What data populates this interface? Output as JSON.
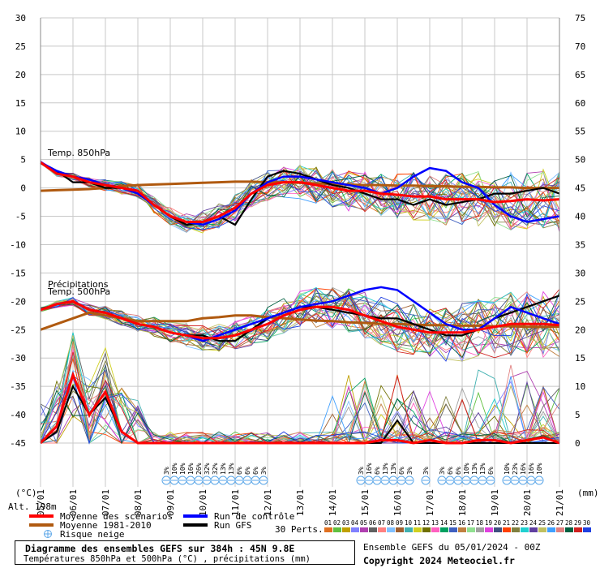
{
  "chart_data": {
    "type": "line",
    "left_axis": {
      "unit": "(°C)",
      "range": [
        -45,
        30
      ],
      "ticks": [
        "30",
        "25",
        "20",
        "15",
        "10",
        "5",
        "0",
        "-5",
        "-10",
        "-15",
        "-20",
        "-25",
        "-30",
        "-35",
        "-40",
        "-45"
      ]
    },
    "right_axis": {
      "unit": "(mm)",
      "range": [
        0,
        75
      ],
      "ticks": [
        "75",
        "70",
        "65",
        "60",
        "55",
        "50",
        "45",
        "40",
        "35",
        "30",
        "25",
        "20",
        "15",
        "10",
        "5",
        "0"
      ]
    },
    "x_ticks": [
      "05/01",
      "06/01",
      "07/01",
      "08/01",
      "09/01",
      "10/01",
      "11/01",
      "12/01",
      "13/01",
      "14/01",
      "15/01",
      "16/01",
      "17/01",
      "18/01",
      "19/01",
      "20/01",
      "21/01"
    ],
    "panel_labels": {
      "t850": "Temp. 850hPa",
      "precip": "Précipitations",
      "t500": "Temp. 500hPa"
    },
    "alt_label": "Alt. 198m",
    "x_days": [
      0,
      0.5,
      1,
      1.5,
      2,
      2.5,
      3,
      3.5,
      4,
      4.5,
      5,
      5.5,
      6,
      6.5,
      7,
      7.5,
      8,
      8.5,
      9,
      9.5,
      10,
      10.5,
      11,
      11.5,
      12,
      12.5,
      13,
      13.5,
      14,
      14.5,
      15,
      15.5,
      16
    ],
    "t850_mean": [
      4.5,
      2.5,
      2,
      1,
      0.5,
      0,
      -0.5,
      -3,
      -5,
      -6,
      -6,
      -5,
      -3.5,
      -1,
      0.5,
      1,
      1,
      0.5,
      0,
      -0.5,
      -0.5,
      -1,
      -1.2,
      -1.5,
      -1.5,
      -2,
      -2,
      -2,
      -2.5,
      -2.3,
      -2,
      -2.2,
      -2
    ],
    "t850_climo": [
      -0.5,
      -0.4,
      -0.3,
      -0.2,
      0,
      0.3,
      0.5,
      0.6,
      0.7,
      0.8,
      0.9,
      1,
      1.1,
      1.1,
      1,
      1,
      0.9,
      0.8,
      0.7,
      0.6,
      0.5,
      0.5,
      0.4,
      0.4,
      0.3,
      0.3,
      0.2,
      0.2,
      0.1,
      0.1,
      0,
      0,
      0
    ],
    "t850_control": [
      4.5,
      3,
      2,
      1.5,
      0.5,
      0,
      -1,
      -3,
      -5,
      -6,
      -6.5,
      -5.5,
      -4,
      -1,
      1,
      2,
      2,
      1.5,
      1,
      0.5,
      0,
      -1,
      0,
      2,
      3.5,
      3,
      1,
      0,
      -3,
      -5,
      -6,
      -5.5,
      -5
    ],
    "t850_gfs": [
      4.5,
      3,
      1,
      1,
      0,
      0,
      -1,
      -3,
      -5,
      -6.5,
      -6,
      -5,
      -6.5,
      -2,
      2,
      3,
      2.5,
      1.5,
      0.5,
      0,
      -1,
      -2,
      -2,
      -3,
      -2,
      -3,
      -2.5,
      -2,
      -1,
      -1,
      -0.5,
      0,
      -1
    ],
    "t500_mean": [
      -21.5,
      -20.5,
      -20,
      -21.5,
      -22,
      -23,
      -24,
      -24.5,
      -25.5,
      -26,
      -26.5,
      -26.5,
      -26,
      -25,
      -24,
      -22.5,
      -21.5,
      -21,
      -21,
      -21.5,
      -22.5,
      -23.5,
      -24.5,
      -25,
      -25.5,
      -25.5,
      -25.5,
      -25,
      -24.5,
      -24,
      -24,
      -24,
      -24.2
    ],
    "t500_climo": [
      -25,
      -24,
      -23,
      -22,
      -22.5,
      -23,
      -23.5,
      -23.5,
      -23.5,
      -23.5,
      -23,
      -22.8,
      -22.5,
      -22.5,
      -22.8,
      -23,
      -23.2,
      -23.4,
      -23.5,
      -23.7,
      -23.8,
      -24,
      -24,
      -24.1,
      -24.2,
      -24.2,
      -24.3,
      -24.3,
      -24.4,
      -24.4,
      -24.5,
      -24.5,
      -24.5
    ],
    "t500_control": [
      -21.5,
      -20.5,
      -20,
      -21.5,
      -22,
      -23,
      -24,
      -24.5,
      -25.5,
      -26,
      -27,
      -26,
      -25,
      -24,
      -23,
      -22,
      -21,
      -20.5,
      -20,
      -19,
      -18,
      -17.5,
      -18,
      -20,
      -22,
      -24,
      -25,
      -25,
      -23,
      -21,
      -22,
      -23,
      -24
    ],
    "t500_gfs": [
      -21.5,
      -20.5,
      -20,
      -21.5,
      -22,
      -23,
      -24,
      -24.5,
      -25.5,
      -26,
      -26,
      -27,
      -27,
      -25,
      -23,
      -22,
      -21,
      -21,
      -21.5,
      -22,
      -22.5,
      -23,
      -23,
      -24,
      -25,
      -26,
      -26,
      -25,
      -23,
      -22,
      -21,
      -20,
      -19
    ],
    "precip_mean": [
      0,
      3,
      12,
      5,
      9,
      2,
      0,
      0,
      0,
      0,
      0,
      0,
      0,
      0,
      0,
      0,
      0,
      0,
      0,
      0,
      0,
      0.5,
      0.5,
      0,
      0.5,
      0,
      0,
      0.5,
      0.5,
      0,
      0.5,
      1,
      0
    ],
    "precip_gfs": [
      0,
      2,
      10,
      5,
      8,
      2,
      0,
      0,
      0,
      0,
      0,
      0,
      0,
      0,
      0,
      0,
      0,
      0,
      0,
      0,
      0,
      0,
      4,
      0,
      0,
      0,
      0,
      0,
      0,
      0,
      0,
      0,
      0
    ],
    "members_label": "30 Perts.",
    "member_numbers": [
      "01",
      "02",
      "03",
      "04",
      "05",
      "06",
      "07",
      "08",
      "09",
      "10",
      "11",
      "12",
      "13",
      "14",
      "15",
      "16",
      "17",
      "18",
      "19",
      "20",
      "21",
      "22",
      "23",
      "24",
      "25",
      "26",
      "27",
      "28",
      "29",
      "30"
    ],
    "member_colors": [
      "#e07020",
      "#60c040",
      "#c0a000",
      "#8080ff",
      "#b040b0",
      "#606060",
      "#ff8080",
      "#80c0ff",
      "#a06030",
      "#40b0b0",
      "#d0d020",
      "#707000",
      "#ff60c0",
      "#00a060",
      "#4060c0",
      "#c08040",
      "#90e090",
      "#a0a0a0",
      "#e040e0",
      "#405080",
      "#ff4000",
      "#808040",
      "#20d0d0",
      "#6040a0",
      "#c0c060",
      "#40a0ff",
      "#e08080",
      "#006040",
      "#d02020",
      "#2040e0"
    ],
    "snow_risk_groups": [
      {
        "start_day": 3.75,
        "labels": [
          "3%",
          "10%",
          "10%",
          "16%",
          "26%",
          "32%",
          "32%",
          "13%",
          "13%",
          "6%",
          "6%",
          "6%",
          "3%"
        ]
      },
      {
        "start_day": 9.75,
        "labels": [
          "3%",
          "16%",
          "6%",
          "13%",
          "13%",
          "6%",
          "3%"
        ]
      },
      {
        "start_day": 11.75,
        "labels": [
          "3%"
        ]
      },
      {
        "start_day": 12.25,
        "labels": [
          "3%",
          "6%",
          "6%",
          "10%",
          "13%",
          "13%",
          "6%"
        ]
      },
      {
        "start_day": 14.25,
        "labels": [
          "10%",
          "23%",
          "16%",
          "16%",
          "10%"
        ]
      }
    ]
  },
  "legend": {
    "mean": "Moyenne des scénarios",
    "climo": "Moyenne 1981-2010",
    "snow": "Risque neige",
    "control": "Run de contrôle",
    "gfs": "Run GFS",
    "colors": {
      "mean": "#ff0000",
      "climo": "#b05a10",
      "control": "#0000ff",
      "gfs": "#000000"
    }
  },
  "footer": {
    "title": "Diagramme des ensembles GEFS sur 384h : 45N 9.8E",
    "subtitle": "Températures 850hPa et 500hPa (°C) , précipitations (mm)",
    "run": "Ensemble GEFS du 05/01/2024 - 00Z",
    "copyright": "Copyright 2024 Meteociel.fr"
  }
}
